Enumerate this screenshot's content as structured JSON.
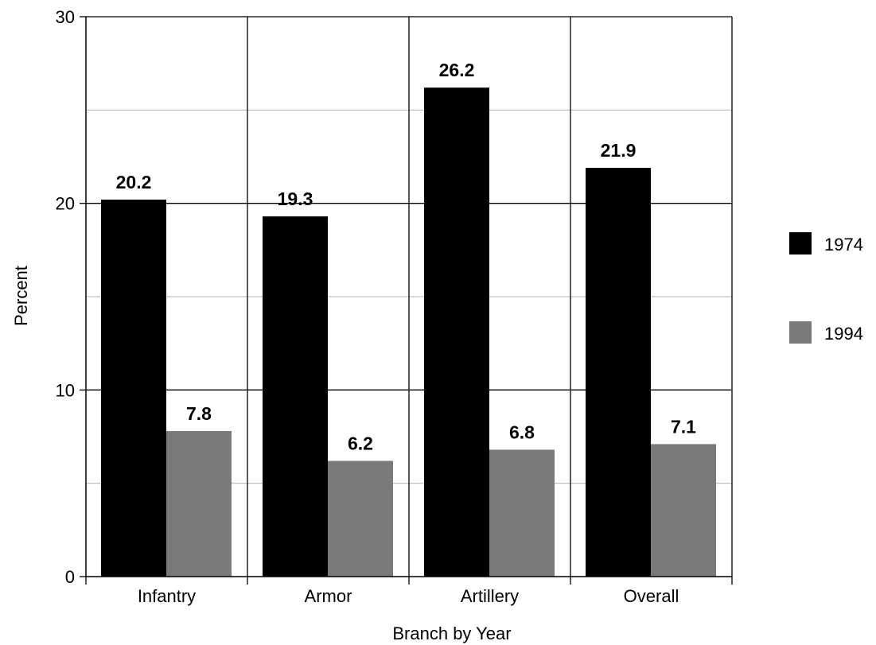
{
  "chart_data": {
    "type": "bar",
    "title": "",
    "xlabel": "Branch by Year",
    "ylabel": "Percent",
    "ylim": [
      0,
      30
    ],
    "yticks": [
      0,
      10,
      20,
      30
    ],
    "grid": true,
    "legend_position": "right",
    "categories": [
      "Infantry",
      "Armor",
      "Artillery",
      "Overall"
    ],
    "series": [
      {
        "name": "1974",
        "color": "#000000",
        "values": [
          20.2,
          19.3,
          26.2,
          21.9
        ]
      },
      {
        "name": "1994",
        "color": "#7a7a7a",
        "values": [
          7.8,
          6.2,
          6.8,
          7.1
        ]
      }
    ]
  }
}
